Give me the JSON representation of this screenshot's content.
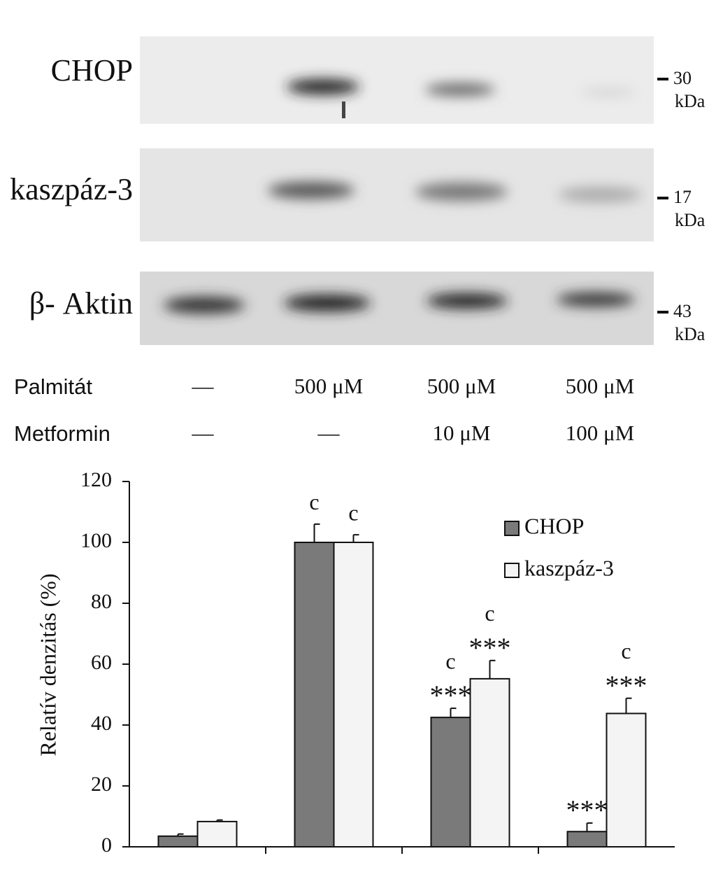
{
  "blots": [
    {
      "label": "CHOP",
      "marker": "30",
      "unit": "kDa"
    },
    {
      "label": "kaszpáz-3",
      "marker": "17",
      "unit": "kDa"
    },
    {
      "label": "β- Aktin",
      "marker": "43",
      "unit": "kDa"
    }
  ],
  "treatments": [
    {
      "label": "Palmitát",
      "values": [
        "—",
        "500 μM",
        "500 μM",
        "500 μM"
      ]
    },
    {
      "label": "Metformin",
      "values": [
        "—",
        "—",
        "10 μM",
        "100 μM"
      ]
    }
  ],
  "chart_data": {
    "type": "bar",
    "ylabel": "Relatív denzitás  (%)",
    "categories": [
      null,
      null,
      null,
      null
    ],
    "series": [
      {
        "name": "CHOP",
        "color": "#7a7a7a",
        "values": [
          3.5,
          100,
          42.5,
          5
        ],
        "errors": [
          0.7,
          6,
          3,
          2.8
        ],
        "letters": [
          null,
          "c",
          "c",
          null
        ],
        "stars": [
          null,
          null,
          "***",
          "***"
        ]
      },
      {
        "name": "kaszpáz-3",
        "color": "#f4f4f4",
        "values": [
          8.3,
          100,
          55.2,
          43.8
        ],
        "errors": [
          0.5,
          2.5,
          6,
          5
        ],
        "letters": [
          null,
          "c",
          "c",
          "c"
        ],
        "stars": [
          null,
          null,
          "***",
          "***"
        ]
      }
    ],
    "ylim": [
      0,
      120
    ],
    "yticks": [
      0,
      20,
      40,
      60,
      80,
      100,
      120
    ],
    "legend": "upper right"
  }
}
